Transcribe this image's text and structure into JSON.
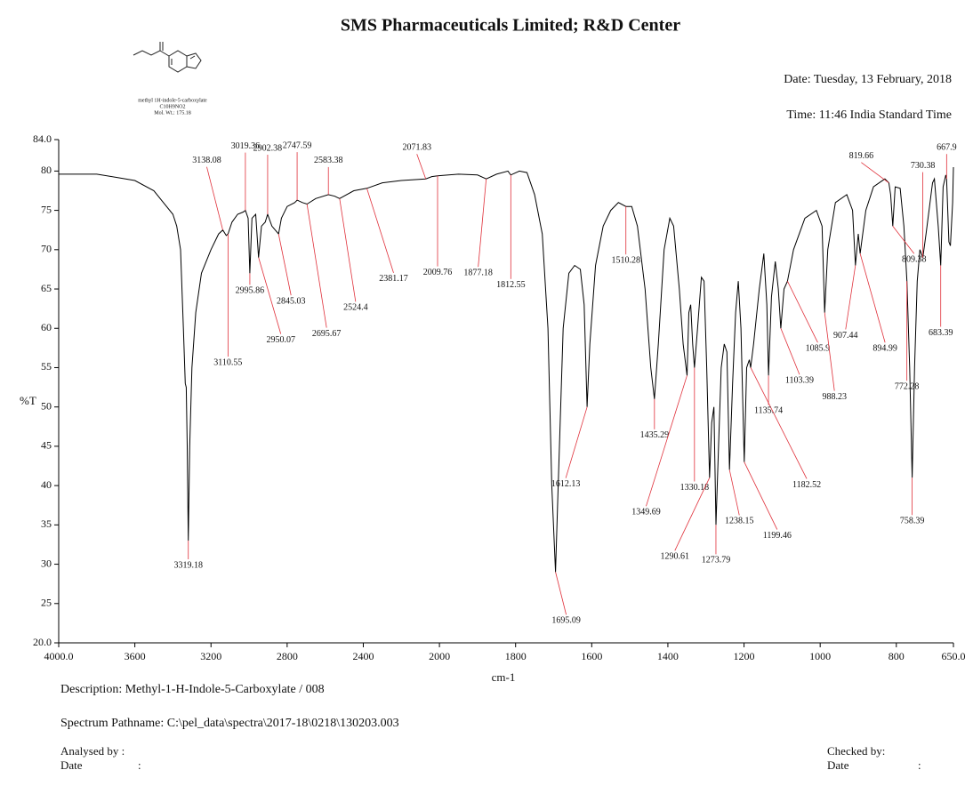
{
  "header": {
    "title": "SMS Pharmaceuticals Limited; R&D Center",
    "date": "Date: Tuesday, 13 February, 2018",
    "time": "Time: 11:46 India Standard Time"
  },
  "molecule": {
    "name": "methyl 1H-indole-5-carboxylate",
    "formula": "C10H9NO2",
    "weight": "Mol. Wt.: 175.18"
  },
  "footer": {
    "description": "Description: Methyl-1-H-Indole-5-Carboxylate / 008",
    "pathname": "Spectrum Pathname: C:\\pel_data\\spectra\\2017-18\\0218\\130203.003",
    "analysed": "Analysed by :",
    "checked": "Checked by:",
    "date_word": "Date",
    "colon": ":"
  },
  "chart_data": {
    "type": "line",
    "ylabel": "%T",
    "xlabel": "cm-1",
    "color": "#000000",
    "peak_color": "#e0303a",
    "xlim": [
      4000,
      650
    ],
    "ylim": [
      20,
      84
    ],
    "x_scale": {
      "break": 2000,
      "factor": 2
    },
    "xticks": [
      {
        "value": 4000,
        "label": "4000.0"
      },
      3600,
      3200,
      2800,
      2400,
      2000,
      1800,
      1600,
      1400,
      1200,
      1000,
      800,
      {
        "value": 650,
        "label": "650.0"
      }
    ],
    "yticks": [
      {
        "value": 20,
        "label": "20.0"
      },
      25,
      30,
      35,
      40,
      45,
      50,
      55,
      60,
      65,
      70,
      75,
      80,
      {
        "value": 84,
        "label": "84.0"
      }
    ],
    "x": [
      4000,
      3800,
      3700,
      3600,
      3500,
      3450,
      3400,
      3380,
      3360,
      3345,
      3335,
      3330,
      3325,
      3319.18,
      3312,
      3300,
      3280,
      3250,
      3200,
      3160,
      3138.08,
      3120,
      3110.55,
      3090,
      3060,
      3030,
      3019.36,
      3005,
      2995.86,
      2985,
      2965,
      2950.07,
      2935,
      2915,
      2902.38,
      2880,
      2845.03,
      2830,
      2800,
      2760,
      2747.59,
      2720,
      2695.67,
      2650,
      2583.38,
      2550,
      2524.4,
      2450,
      2381.17,
      2300,
      2200,
      2071.83,
      2040,
      2009.76,
      1950,
      1900,
      1877.18,
      1850,
      1820,
      1812.55,
      1790,
      1770,
      1750,
      1730,
      1715,
      1705,
      1695.09,
      1688,
      1675,
      1660,
      1645,
      1630,
      1620,
      1612.13,
      1605,
      1590,
      1570,
      1550,
      1530,
      1510.28,
      1495,
      1480,
      1460,
      1445,
      1435.29,
      1425,
      1410,
      1395,
      1385,
      1370,
      1360,
      1349.69,
      1345,
      1340,
      1335,
      1330.18,
      1322,
      1312,
      1305,
      1298,
      1290.61,
      1285,
      1279,
      1273.79,
      1267,
      1260,
      1252,
      1245,
      1238.15,
      1230,
      1222,
      1215,
      1208,
      1199.46,
      1193,
      1186,
      1182.52,
      1175,
      1160,
      1148,
      1140,
      1135.74,
      1128,
      1118,
      1110,
      1103.39,
      1095,
      1085.9,
      1070,
      1040,
      1010,
      995,
      988.23,
      980,
      960,
      930,
      915,
      907.44,
      900,
      894.99,
      880,
      860,
      830,
      819.66,
      815,
      809.38,
      803,
      790,
      780,
      772.28,
      765,
      758.39,
      752,
      745,
      738,
      730.38,
      722,
      705,
      700,
      690,
      683.39,
      677,
      670,
      667.9,
      662,
      658,
      652,
      650
    ],
    "values": [
      79.6,
      79.6,
      79.2,
      78.8,
      77.5,
      76,
      74.5,
      73,
      70,
      60,
      53,
      52.5,
      45,
      33,
      45,
      55,
      62,
      67,
      70,
      72,
      72.5,
      71.8,
      72,
      73.5,
      74.5,
      74.8,
      75,
      74,
      67,
      74,
      74.5,
      69,
      73,
      73.5,
      74.5,
      73,
      72,
      74,
      75.5,
      76,
      76.3,
      76,
      75.8,
      76.5,
      77,
      76.8,
      76.5,
      77.5,
      77.8,
      78.5,
      78.8,
      79,
      79.3,
      79.4,
      79.6,
      79.5,
      79,
      79.6,
      80,
      79.5,
      80,
      79.8,
      77,
      72,
      60,
      40,
      29,
      40,
      60,
      67,
      68,
      67.5,
      63,
      50,
      58,
      68,
      73,
      75,
      76,
      75.5,
      75.5,
      73,
      65,
      55,
      51,
      58,
      70,
      74,
      73,
      65,
      58,
      54,
      62,
      63,
      58,
      55,
      60,
      66.5,
      66,
      55,
      41,
      48,
      50,
      35,
      45,
      55,
      58,
      57,
      42,
      53,
      62,
      66,
      60,
      43,
      55,
      56,
      55,
      58,
      65,
      69.5,
      63,
      54,
      64,
      68.5,
      65,
      60,
      65,
      66,
      70,
      74,
      75,
      73,
      62,
      70,
      76,
      77,
      75,
      68,
      72,
      69.5,
      75,
      78,
      79,
      78.5,
      77,
      73,
      78,
      77.8,
      73,
      66,
      55,
      41,
      55,
      66,
      70,
      69,
      72,
      78.5,
      79,
      73,
      68,
      78,
      79.5,
      79,
      71,
      70.5,
      76,
      80.5
    ],
    "peaks": [
      {
        "x": 3319.18,
        "y": 33
      },
      {
        "x": 3138.08,
        "y": 72.5
      },
      {
        "x": 3110.55,
        "y": 72
      },
      {
        "x": 3019.36,
        "y": 75
      },
      {
        "x": 2995.86,
        "y": 67
      },
      {
        "x": 2950.07,
        "y": 69
      },
      {
        "x": 2902.38,
        "y": 74.5
      },
      {
        "x": 2845.03,
        "y": 72
      },
      {
        "x": 2747.59,
        "y": 76.3
      },
      {
        "x": 2695.67,
        "y": 75.8
      },
      {
        "x": 2583.38,
        "y": 77
      },
      {
        "x": 2524.4,
        "y": 76.5
      },
      {
        "x": 2381.17,
        "y": 77.8
      },
      {
        "x": 2071.83,
        "y": 79
      },
      {
        "x": 2009.76,
        "y": 79.4
      },
      {
        "x": 1877.18,
        "y": 79
      },
      {
        "x": 1812.55,
        "y": 79.5
      },
      {
        "x": 1695.09,
        "y": 29
      },
      {
        "x": 1612.13,
        "y": 50
      },
      {
        "x": 1510.28,
        "y": 75.5
      },
      {
        "x": 1435.29,
        "y": 51
      },
      {
        "x": 1349.69,
        "y": 54
      },
      {
        "x": 1330.18,
        "y": 55
      },
      {
        "x": 1290.61,
        "y": 41
      },
      {
        "x": 1273.79,
        "y": 35
      },
      {
        "x": 1238.15,
        "y": 42
      },
      {
        "x": 1199.46,
        "y": 43
      },
      {
        "x": 1182.52,
        "y": 55
      },
      {
        "x": 1135.74,
        "y": 54
      },
      {
        "x": 1103.39,
        "y": 60
      },
      {
        "x": 1085.9,
        "y": 66
      },
      {
        "x": 988.23,
        "y": 62
      },
      {
        "x": 907.44,
        "y": 68
      },
      {
        "x": 894.99,
        "y": 69.5
      },
      {
        "x": 819.66,
        "y": 78.5
      },
      {
        "x": 809.38,
        "y": 73
      },
      {
        "x": 772.28,
        "y": 66
      },
      {
        "x": 758.39,
        "y": 41
      },
      {
        "x": 730.38,
        "y": 69
      },
      {
        "x": 683.39,
        "y": 68
      },
      {
        "x": 667.9,
        "y": 79
      }
    ]
  }
}
